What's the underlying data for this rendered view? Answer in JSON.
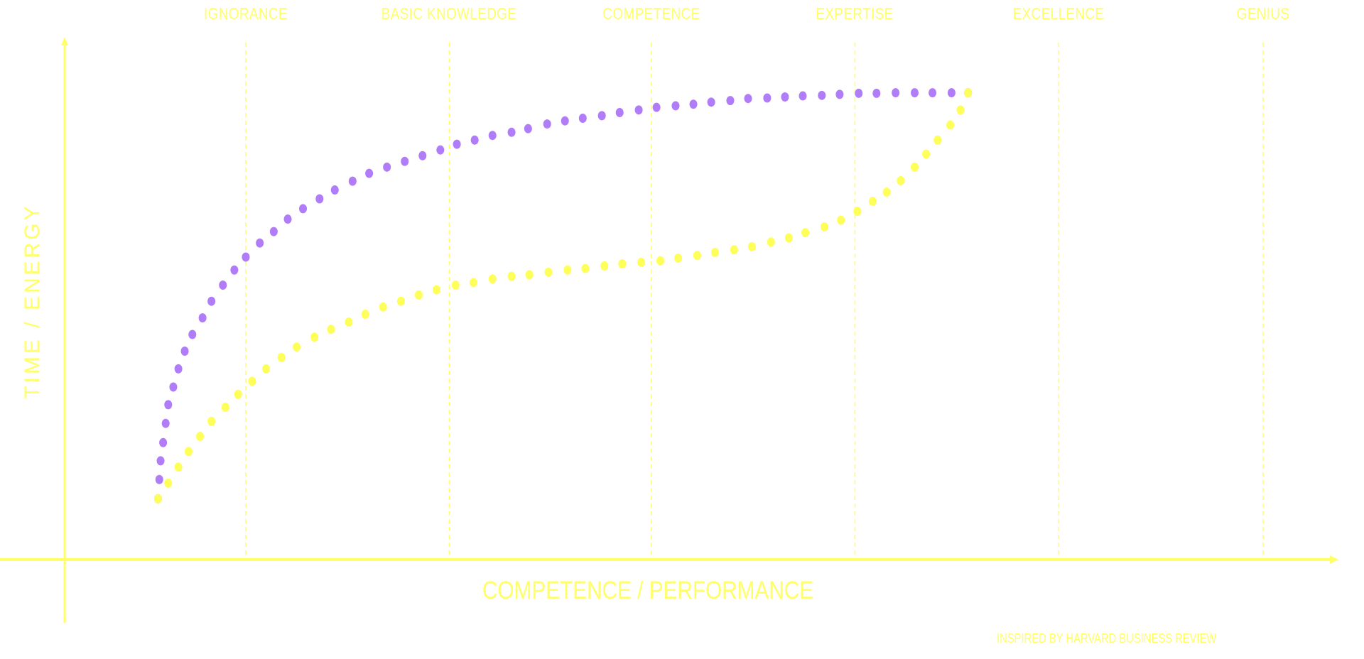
{
  "chart_data": {
    "type": "scatter",
    "title": "",
    "xlabel": "COMPETENCE / PERFORMANCE",
    "ylabel": "TIME / ENERGY",
    "xlim": [
      0,
      100
    ],
    "ylim": [
      0,
      100
    ],
    "grid": false,
    "stages": [
      {
        "label": "IGNORANCE",
        "x": 14.3
      },
      {
        "label": "BASIC KNOWLEDGE",
        "x": 30.3
      },
      {
        "label": "COMPETENCE",
        "x": 46.2
      },
      {
        "label": "EXPERTISE",
        "x": 62.2
      },
      {
        "label": "EXCELLENCE",
        "x": 78.2
      },
      {
        "label": "GENIUS",
        "x": 94.3
      }
    ],
    "footnote": "INSPIRED BY HARVARD BUSINESS REVIEW",
    "colors": {
      "axis": "#ffff66",
      "gridline": "#ffff66"
    },
    "series": [
      {
        "color": "#b07cf8",
        "points": [
          [
            7.4,
            11.7
          ],
          [
            7.5,
            15.4
          ],
          [
            7.6,
            19.0
          ],
          [
            7.8,
            22.5
          ],
          [
            8.0,
            26.2
          ],
          [
            8.2,
            29.8
          ],
          [
            8.6,
            33.2
          ],
          [
            9.0,
            36.7
          ],
          [
            9.5,
            40.1
          ],
          [
            10.1,
            43.3
          ],
          [
            10.9,
            46.5
          ],
          [
            11.6,
            49.7
          ],
          [
            12.5,
            52.8
          ],
          [
            13.4,
            55.7
          ],
          [
            14.3,
            58.2
          ],
          [
            15.4,
            60.9
          ],
          [
            16.5,
            63.1
          ],
          [
            17.6,
            65.5
          ],
          [
            18.8,
            67.5
          ],
          [
            20.1,
            69.4
          ],
          [
            21.3,
            71.1
          ],
          [
            22.7,
            72.8
          ],
          [
            24.0,
            74.3
          ],
          [
            25.4,
            75.5
          ],
          [
            26.8,
            76.6
          ],
          [
            28.2,
            77.7
          ],
          [
            29.6,
            78.8
          ],
          [
            30.9,
            79.9
          ],
          [
            32.3,
            80.7
          ],
          [
            33.7,
            81.6
          ],
          [
            35.2,
            82.2
          ],
          [
            36.5,
            82.9
          ],
          [
            38.0,
            83.8
          ],
          [
            39.4,
            84.4
          ],
          [
            40.8,
            84.9
          ],
          [
            42.3,
            85.4
          ],
          [
            43.7,
            86.0
          ],
          [
            45.2,
            86.5
          ],
          [
            46.6,
            87.0
          ],
          [
            48.1,
            87.3
          ],
          [
            49.5,
            87.6
          ],
          [
            50.9,
            88.0
          ],
          [
            52.4,
            88.3
          ],
          [
            53.8,
            88.7
          ],
          [
            55.3,
            88.8
          ],
          [
            56.7,
            89.0
          ],
          [
            58.1,
            89.2
          ],
          [
            59.6,
            89.3
          ],
          [
            61.0,
            89.5
          ],
          [
            62.5,
            89.7
          ],
          [
            63.9,
            89.7
          ],
          [
            65.4,
            89.8
          ],
          [
            66.9,
            89.8
          ],
          [
            68.3,
            89.8
          ],
          [
            69.8,
            89.8
          ],
          [
            71.1,
            89.8
          ]
        ]
      },
      {
        "color": "#ffff5a",
        "points": [
          [
            7.4,
            11.7
          ],
          [
            8.2,
            14.7
          ],
          [
            9.0,
            17.8
          ],
          [
            9.8,
            20.8
          ],
          [
            10.7,
            23.7
          ],
          [
            11.6,
            26.6
          ],
          [
            12.7,
            29.3
          ],
          [
            13.7,
            31.8
          ],
          [
            14.8,
            34.3
          ],
          [
            15.9,
            36.7
          ],
          [
            17.1,
            38.9
          ],
          [
            18.3,
            40.9
          ],
          [
            19.7,
            42.8
          ],
          [
            21.0,
            44.3
          ],
          [
            22.4,
            45.7
          ],
          [
            23.7,
            47.2
          ],
          [
            25.1,
            48.6
          ],
          [
            26.5,
            49.7
          ],
          [
            27.9,
            50.9
          ],
          [
            29.3,
            51.9
          ],
          [
            30.8,
            52.8
          ],
          [
            32.2,
            53.3
          ],
          [
            33.7,
            54.0
          ],
          [
            35.2,
            54.5
          ],
          [
            36.6,
            54.8
          ],
          [
            38.1,
            55.3
          ],
          [
            39.6,
            55.7
          ],
          [
            41.0,
            56.0
          ],
          [
            42.5,
            56.5
          ],
          [
            43.9,
            56.9
          ],
          [
            45.4,
            57.2
          ],
          [
            46.9,
            57.5
          ],
          [
            48.3,
            58.0
          ],
          [
            49.8,
            58.5
          ],
          [
            51.2,
            59.1
          ],
          [
            52.7,
            59.6
          ],
          [
            54.1,
            60.2
          ],
          [
            55.6,
            61.1
          ],
          [
            57.0,
            61.9
          ],
          [
            58.3,
            62.9
          ],
          [
            59.8,
            64.0
          ],
          [
            61.1,
            65.3
          ],
          [
            62.4,
            67.0
          ],
          [
            63.6,
            68.9
          ],
          [
            64.7,
            70.7
          ],
          [
            65.8,
            72.9
          ],
          [
            66.9,
            75.5
          ],
          [
            67.8,
            78.0
          ],
          [
            68.7,
            80.7
          ],
          [
            69.7,
            83.6
          ],
          [
            70.5,
            86.5
          ],
          [
            71.1,
            89.8
          ]
        ]
      }
    ]
  }
}
